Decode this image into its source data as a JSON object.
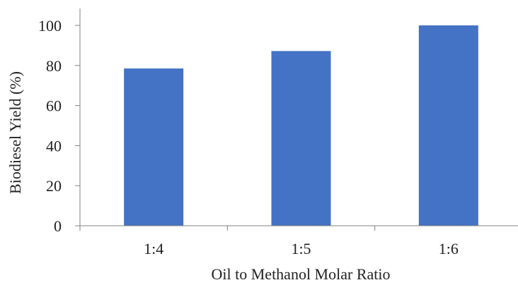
{
  "chart_data": {
    "type": "bar",
    "categories": [
      "1:4",
      "1:5",
      "1:6"
    ],
    "values": [
      78.5,
      87.2,
      100
    ],
    "xlabel": "Oil to Methanol Molar Ratio",
    "ylabel": "Biodiesel Yield (%)",
    "ylim": [
      0,
      100
    ],
    "yticks": [
      0,
      20,
      40,
      60,
      80,
      100
    ],
    "grid": false,
    "legend": "none",
    "bar_color": "#4472C4",
    "axis_color": "#808080"
  }
}
